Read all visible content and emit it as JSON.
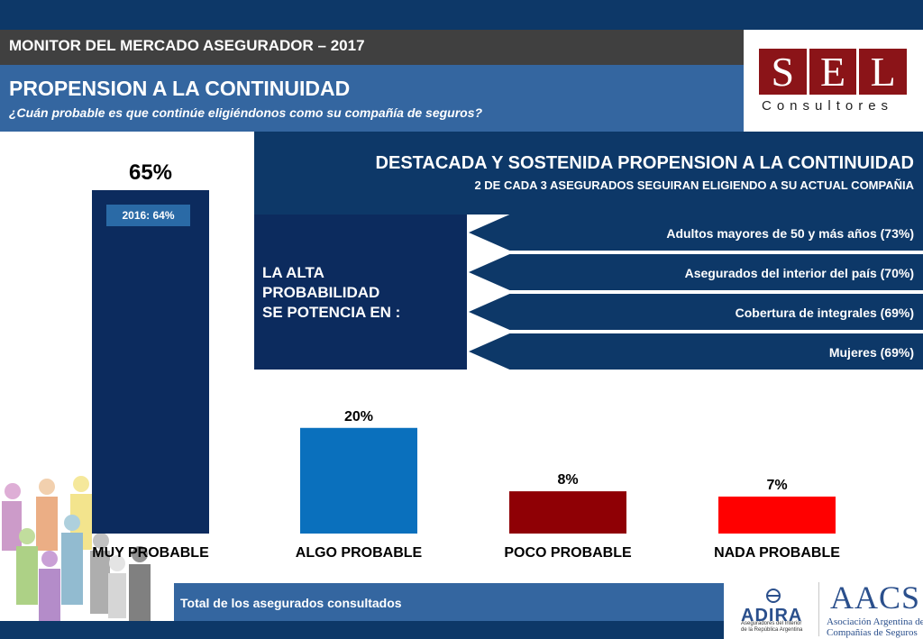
{
  "header": {
    "top_title": "MONITOR DEL MERCADO ASEGURADOR – 2017",
    "main_title": "PROPENSION A LA CONTINUIDAD",
    "subtitle": "¿Cuán probable es que continúe eligiéndonos como su compañía de seguros?"
  },
  "logo": {
    "letters": [
      "S",
      "E",
      "L"
    ],
    "sub": "Consultores"
  },
  "highlight": {
    "title": "DESTACADA Y SOSTENIDA PROPENSION A LA CONTINUIDAD",
    "subtitle": "2 DE CADA 3 ASEGURADOS SEGUIRAN ELIGIENDO A SU ACTUAL COMPAÑIA",
    "left_lines": [
      "LA ALTA",
      "PROBABILIDAD",
      "SE POTENCIA EN :"
    ],
    "items": [
      "Adultos mayores de 50 y más años (73%)",
      "Asegurados del interior del país (70%)",
      "Cobertura de integrales (69%)",
      "Mujeres (69%)"
    ]
  },
  "badge": "2016: 64%",
  "footer": {
    "text": "Total de los asegurados consultados"
  },
  "partners": {
    "adira_name": "ADIRA",
    "adira_sub_1": "Aseguradores del Interior",
    "adira_sub_2": "de la República Argentina",
    "aacs_name": "AACS",
    "aacs_sub_1": "Asociación Argentina de",
    "aacs_sub_2": "Compañías de Seguros"
  },
  "chart_data": {
    "type": "bar",
    "categories": [
      "MUY PROBABLE",
      "ALGO PROBABLE",
      "POCO PROBABLE",
      "NADA PROBABLE"
    ],
    "values": [
      65,
      20,
      8,
      7
    ],
    "value_labels": [
      "65%",
      "20%",
      "8%",
      "7%"
    ],
    "colors": [
      "#0c2b5e",
      "#0a70bd",
      "#8f0005",
      "#ff0000"
    ],
    "ylim": [
      0,
      65
    ]
  }
}
